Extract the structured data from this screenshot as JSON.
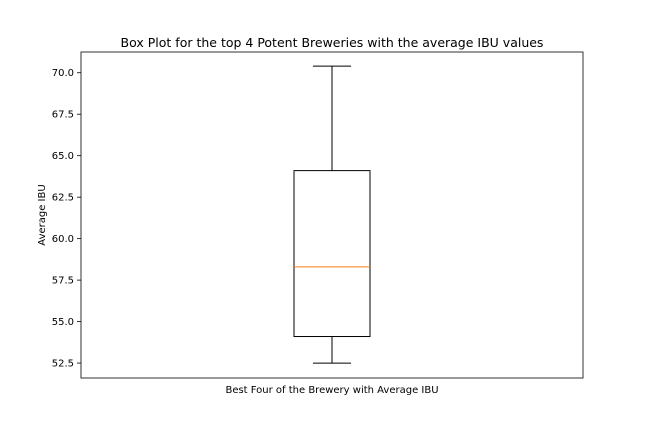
{
  "chart_data": {
    "type": "box",
    "title": "Box Plot for the top 4 Potent Breweries with the average IBU values",
    "xlabel": "Best Four of the Brewery with Average IBU",
    "ylabel": "Average IBU",
    "ylim": [
      51.6,
      71.25
    ],
    "yticks": [
      "52.5",
      "55.0",
      "57.5",
      "60.0",
      "62.5",
      "65.0",
      "67.5",
      "70.0"
    ],
    "grid": false,
    "box": {
      "whisker_low": 52.5,
      "q1": 54.1,
      "median": 58.3,
      "q3": 64.1,
      "whisker_high": 70.4
    },
    "colors": {
      "box": "#000000",
      "median": "#ff7f0e",
      "axes": "#000000",
      "background": "#ffffff"
    }
  }
}
